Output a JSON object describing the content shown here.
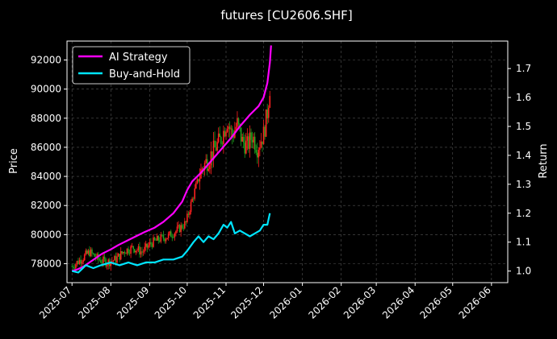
{
  "chart_data": {
    "type": "line",
    "title": "futures [CU2606.SHF]",
    "ylabel_left": "Price",
    "ylabel_right": "Return",
    "x_ticks": [
      "2025-07",
      "2025-08",
      "2025-09",
      "2025-10",
      "2025-11",
      "2025-12",
      "2026-01",
      "2026-02",
      "2026-03",
      "2026-04",
      "2026-05",
      "2026-06"
    ],
    "y_left_ticks": [
      "78000",
      "80000",
      "82000",
      "84000",
      "86000",
      "88000",
      "90000",
      "92000"
    ],
    "y_right_ticks": [
      "1.0",
      "1.1",
      "1.2",
      "1.3",
      "1.4",
      "1.5",
      "1.6",
      "1.7"
    ],
    "x_range": [
      "2025-06-27",
      "2026-06-14"
    ],
    "y_left_range": [
      76700,
      93300
    ],
    "y_right_range": [
      0.96,
      1.795
    ],
    "grid": true,
    "legend_position": "top-left",
    "series": [
      {
        "name": "AI Strategy",
        "color": "#ff00ff",
        "axis": "right",
        "points": [
          [
            "2025-07-01",
            1.0
          ],
          [
            "2025-07-05",
            1.005
          ],
          [
            "2025-07-10",
            1.015
          ],
          [
            "2025-07-15",
            1.03
          ],
          [
            "2025-07-20",
            1.045
          ],
          [
            "2025-07-25",
            1.06
          ],
          [
            "2025-08-01",
            1.075
          ],
          [
            "2025-08-07",
            1.09
          ],
          [
            "2025-08-14",
            1.105
          ],
          [
            "2025-08-21",
            1.12
          ],
          [
            "2025-08-28",
            1.135
          ],
          [
            "2025-09-05",
            1.15
          ],
          [
            "2025-09-12",
            1.17
          ],
          [
            "2025-09-20",
            1.2
          ],
          [
            "2025-09-27",
            1.24
          ],
          [
            "2025-10-01",
            1.28
          ],
          [
            "2025-10-05",
            1.31
          ],
          [
            "2025-10-12",
            1.34
          ],
          [
            "2025-10-20",
            1.38
          ],
          [
            "2025-10-28",
            1.42
          ],
          [
            "2025-11-05",
            1.46
          ],
          [
            "2025-11-12",
            1.5
          ],
          [
            "2025-11-20",
            1.54
          ],
          [
            "2025-11-27",
            1.57
          ],
          [
            "2025-12-01",
            1.6
          ],
          [
            "2025-12-04",
            1.65
          ],
          [
            "2025-12-06",
            1.72
          ],
          [
            "2025-12-07",
            1.78
          ]
        ]
      },
      {
        "name": "Buy-and-Hold",
        "color": "#00e5ff",
        "axis": "right",
        "points": [
          [
            "2025-07-01",
            1.0
          ],
          [
            "2025-07-06",
            0.995
          ],
          [
            "2025-07-12",
            1.02
          ],
          [
            "2025-07-18",
            1.01
          ],
          [
            "2025-07-24",
            1.02
          ],
          [
            "2025-08-01",
            1.03
          ],
          [
            "2025-08-08",
            1.02
          ],
          [
            "2025-08-15",
            1.03
          ],
          [
            "2025-08-22",
            1.02
          ],
          [
            "2025-08-29",
            1.03
          ],
          [
            "2025-09-05",
            1.03
          ],
          [
            "2025-09-12",
            1.04
          ],
          [
            "2025-09-20",
            1.04
          ],
          [
            "2025-09-27",
            1.05
          ],
          [
            "2025-10-01",
            1.07
          ],
          [
            "2025-10-06",
            1.1
          ],
          [
            "2025-10-10",
            1.12
          ],
          [
            "2025-10-14",
            1.1
          ],
          [
            "2025-10-18",
            1.12
          ],
          [
            "2025-10-22",
            1.11
          ],
          [
            "2025-10-26",
            1.13
          ],
          [
            "2025-10-30",
            1.16
          ],
          [
            "2025-11-02",
            1.15
          ],
          [
            "2025-11-05",
            1.17
          ],
          [
            "2025-11-08",
            1.13
          ],
          [
            "2025-11-12",
            1.14
          ],
          [
            "2025-11-16",
            1.13
          ],
          [
            "2025-11-20",
            1.12
          ],
          [
            "2025-11-24",
            1.13
          ],
          [
            "2025-11-28",
            1.14
          ],
          [
            "2025-12-01",
            1.16
          ],
          [
            "2025-12-04",
            1.16
          ],
          [
            "2025-12-06",
            1.2
          ]
        ]
      }
    ],
    "candles": {
      "up_color": "#ff2020",
      "down_color": "#1fa01f",
      "price_points": [
        [
          "2025-07-01",
          77800
        ],
        [
          "2025-07-08",
          78300
        ],
        [
          "2025-07-15",
          78800
        ],
        [
          "2025-07-22",
          78300
        ],
        [
          "2025-07-29",
          78100
        ],
        [
          "2025-08-05",
          78300
        ],
        [
          "2025-08-12",
          78900
        ],
        [
          "2025-08-19",
          79100
        ],
        [
          "2025-08-26",
          78800
        ],
        [
          "2025-09-02",
          79400
        ],
        [
          "2025-09-09",
          79700
        ],
        [
          "2025-09-16",
          79900
        ],
        [
          "2025-09-23",
          80300
        ],
        [
          "2025-09-30",
          80800
        ],
        [
          "2025-10-03",
          81800
        ],
        [
          "2025-10-08",
          83300
        ],
        [
          "2025-10-13",
          84600
        ],
        [
          "2025-10-18",
          85200
        ],
        [
          "2025-10-23",
          85900
        ],
        [
          "2025-10-28",
          86600
        ],
        [
          "2025-11-02",
          87800
        ],
        [
          "2025-11-06",
          86800
        ],
        [
          "2025-11-10",
          87600
        ],
        [
          "2025-11-14",
          86400
        ],
        [
          "2025-11-18",
          86100
        ],
        [
          "2025-11-22",
          86800
        ],
        [
          "2025-11-26",
          86000
        ],
        [
          "2025-12-01",
          86900
        ],
        [
          "2025-12-04",
          88400
        ],
        [
          "2025-12-06",
          90100
        ]
      ]
    }
  },
  "legend": {
    "items": [
      "AI Strategy",
      "Buy-and-Hold"
    ]
  }
}
